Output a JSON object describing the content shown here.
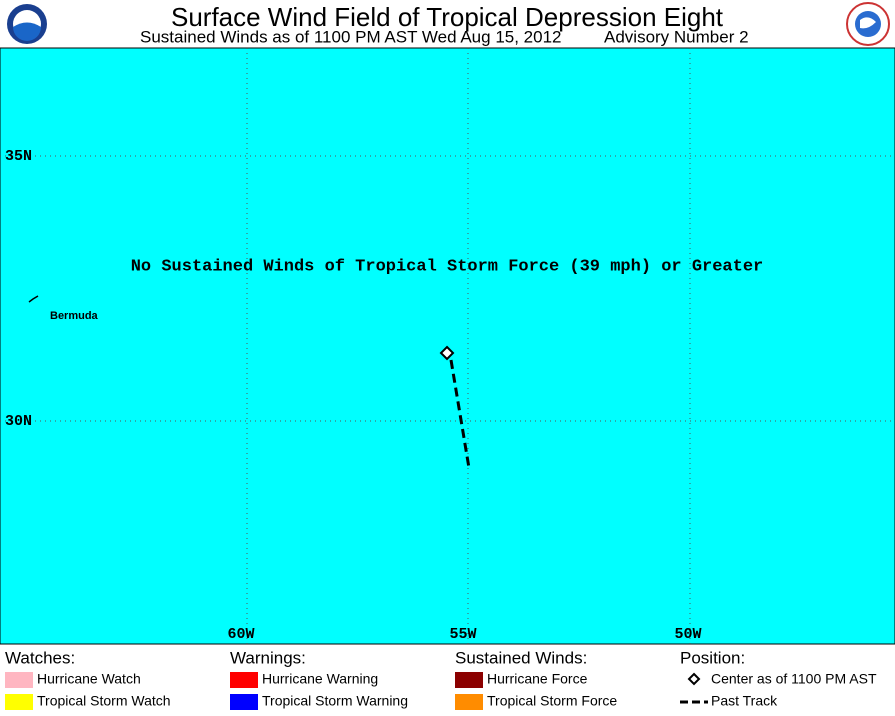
{
  "header": {
    "title": "Surface Wind Field of Tropical Depression Eight",
    "subtitle": "Sustained Winds as of 1100 PM AST Wed Aug 15, 2012",
    "advisory": "Advisory Number 2"
  },
  "map": {
    "message": "No Sustained Winds of Tropical Storm Force (39 mph) or Greater",
    "place_label": "Bermuda",
    "lat_labels": [
      "35N",
      "30N"
    ],
    "lon_labels": [
      "60W",
      "55W",
      "50W"
    ]
  },
  "legend": {
    "groups": [
      {
        "title": "Watches:",
        "items": [
          "Hurricane Watch",
          "Tropical Storm Watch"
        ]
      },
      {
        "title": "Warnings:",
        "items": [
          "Hurricane Warning",
          "Tropical Storm Warning"
        ]
      },
      {
        "title": "Sustained Winds:",
        "items": [
          "Hurricane Force",
          "Tropical Storm Force"
        ]
      },
      {
        "title": "Position:",
        "items": [
          "Center as of 1100 PM AST",
          "Past Track"
        ]
      }
    ]
  }
}
